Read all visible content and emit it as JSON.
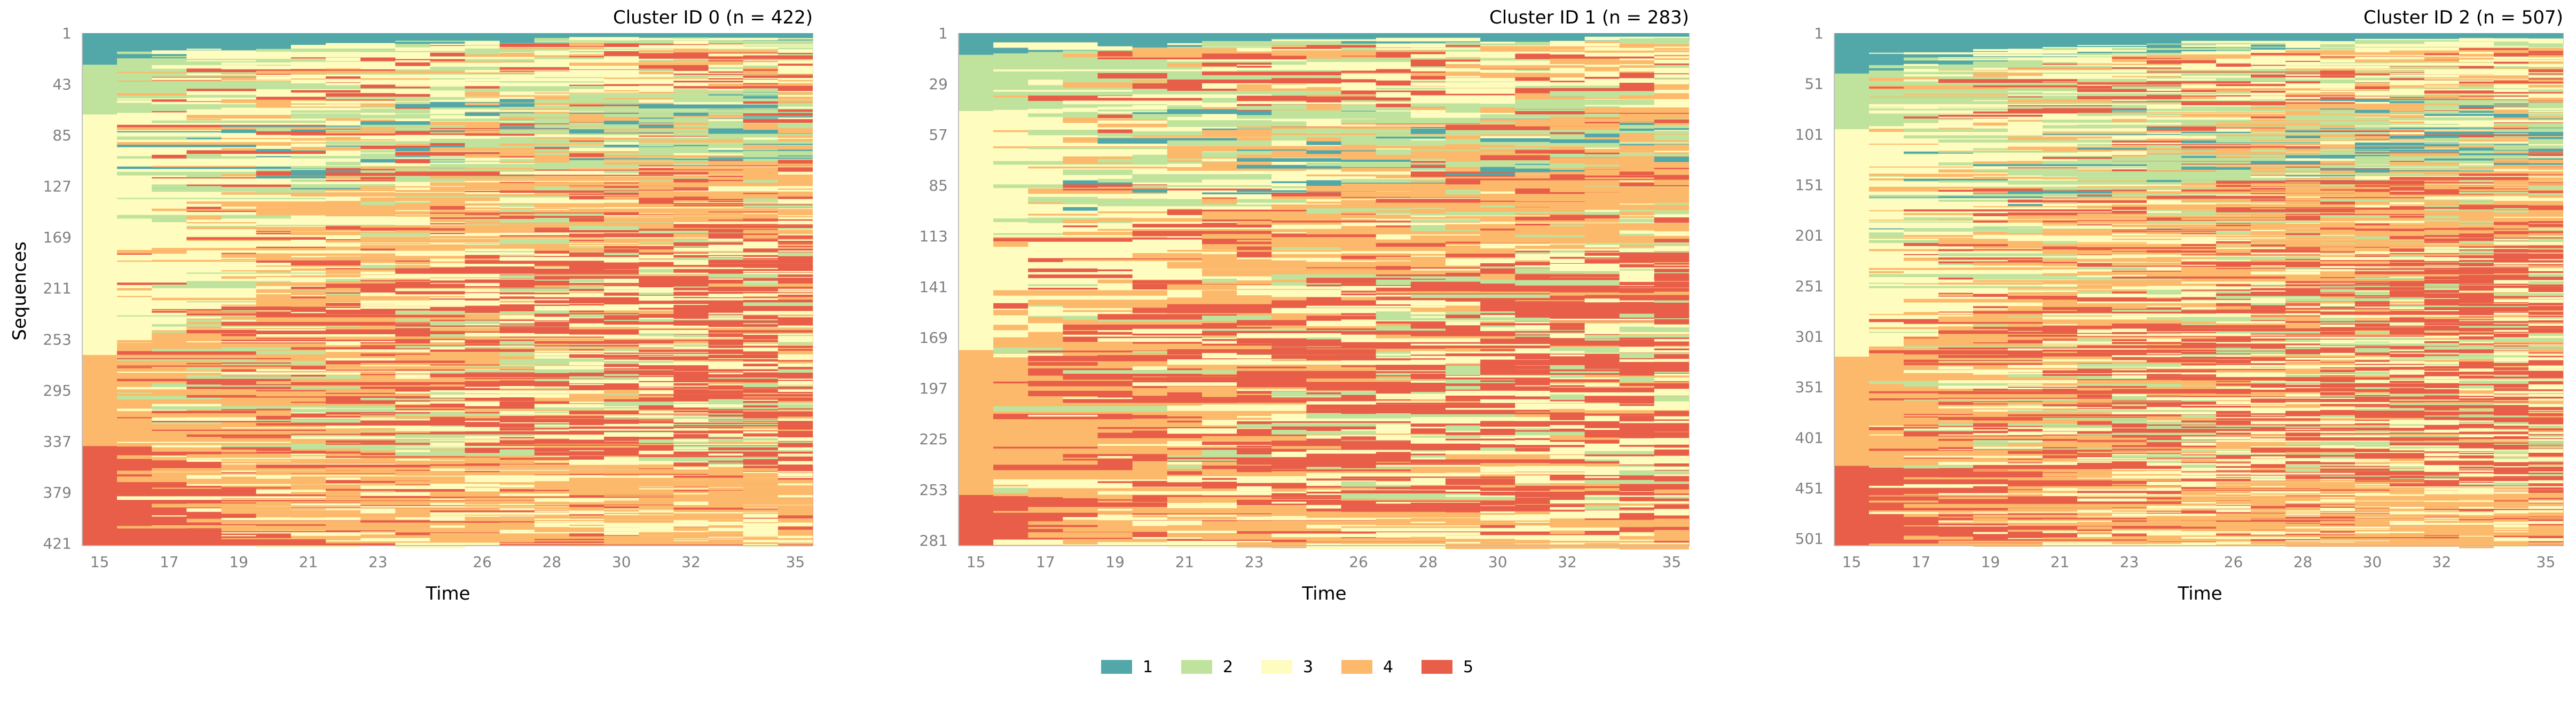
{
  "chart_data": [
    {
      "type": "heatmap",
      "subtype": "sequence-index-plot",
      "title": "Cluster ID 0 (n = 422)",
      "xlabel": "Time",
      "ylabel": "Sequences",
      "x_ticks": [
        15,
        17,
        19,
        21,
        23,
        26,
        28,
        30,
        32,
        35
      ],
      "x_range": [
        15,
        35
      ],
      "y_ticks": [
        1,
        43,
        85,
        127,
        169,
        211,
        253,
        295,
        337,
        379,
        421
      ],
      "n_sequences": 422,
      "states": [
        1,
        2,
        3,
        4,
        5
      ],
      "boundary_x": [
        15,
        20,
        25,
        30,
        35
      ],
      "boundary_series": [
        {
          "state": 1,
          "cum_start": [
            26,
            13,
            9,
            7,
            6
          ]
        },
        {
          "state": 2,
          "cum_start": [
            67,
            60,
            55,
            48,
            42
          ]
        },
        {
          "state": 3,
          "cum_start": [
            265,
            215,
            188,
            175,
            165
          ]
        },
        {
          "state": 4,
          "cum_start": [
            340,
            342,
            348,
            352,
            358
          ]
        }
      ]
    },
    {
      "type": "heatmap",
      "subtype": "sequence-index-plot",
      "title": "Cluster ID 1 (n = 283)",
      "xlabel": "Time",
      "ylabel": "",
      "x_ticks": [
        15,
        17,
        19,
        21,
        23,
        26,
        28,
        30,
        32,
        35
      ],
      "x_range": [
        15,
        35
      ],
      "y_ticks": [
        1,
        29,
        57,
        85,
        113,
        141,
        169,
        197,
        225,
        253,
        281
      ],
      "n_sequences": 283,
      "states": [
        1,
        2,
        3,
        4,
        5
      ],
      "boundary_x": [
        15,
        20,
        25,
        30,
        35
      ],
      "boundary_series": [
        {
          "state": 1,
          "cum_start": [
            12,
            8,
            6,
            5,
            4
          ]
        },
        {
          "state": 2,
          "cum_start": [
            43,
            40,
            36,
            33,
            30
          ]
        },
        {
          "state": 3,
          "cum_start": [
            175,
            150,
            130,
            120,
            112
          ]
        },
        {
          "state": 4,
          "cum_start": [
            255,
            258,
            262,
            264,
            266
          ]
        }
      ]
    },
    {
      "type": "heatmap",
      "subtype": "sequence-index-plot",
      "title": "Cluster ID 2 (n = 507)",
      "xlabel": "Time",
      "ylabel": "",
      "x_ticks": [
        15,
        17,
        19,
        21,
        23,
        26,
        28,
        30,
        32,
        35
      ],
      "x_range": [
        15,
        35
      ],
      "y_ticks": [
        1,
        51,
        101,
        151,
        201,
        251,
        301,
        351,
        401,
        451,
        501
      ],
      "n_sequences": 507,
      "states": [
        1,
        2,
        3,
        4,
        5
      ],
      "boundary_x": [
        15,
        20,
        25,
        30,
        35
      ],
      "boundary_series": [
        {
          "state": 1,
          "cum_start": [
            40,
            25,
            18,
            14,
            10
          ]
        },
        {
          "state": 2,
          "cum_start": [
            95,
            80,
            70,
            62,
            55
          ]
        },
        {
          "state": 3,
          "cum_start": [
            320,
            270,
            230,
            215,
            200
          ]
        },
        {
          "state": 4,
          "cum_start": [
            428,
            433,
            440,
            445,
            450
          ]
        }
      ]
    }
  ],
  "legend": {
    "position": "bottom-center",
    "items": [
      {
        "label": "1",
        "color": "#52a8a8"
      },
      {
        "label": "2",
        "color": "#bfe39c"
      },
      {
        "label": "3",
        "color": "#fefcbe"
      },
      {
        "label": "4",
        "color": "#fcb96b"
      },
      {
        "label": "5",
        "color": "#e85e48"
      }
    ]
  }
}
